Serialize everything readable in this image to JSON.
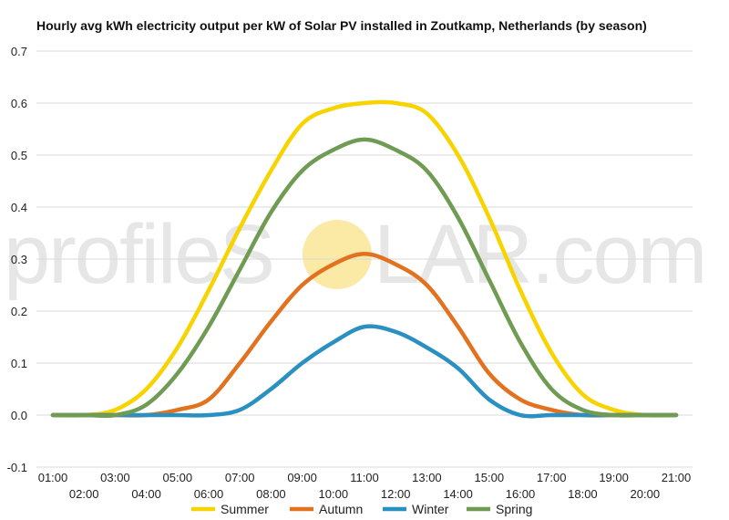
{
  "chart_data": {
    "type": "line",
    "title": "Hourly avg kWh electricity output per kW of Solar PV installed in Zoutkamp, Netherlands (by season)",
    "xlabel": "",
    "ylabel": "",
    "ylim": [
      -0.1,
      0.7
    ],
    "yticks": [
      "-0.1",
      "0.0",
      "0.1",
      "0.2",
      "0.3",
      "0.4",
      "0.5",
      "0.6",
      "0.7"
    ],
    "grid": true,
    "legend_position": "bottom",
    "x": [
      "01:00",
      "02:00",
      "03:00",
      "04:00",
      "05:00",
      "06:00",
      "07:00",
      "08:00",
      "09:00",
      "10:00",
      "11:00",
      "12:00",
      "13:00",
      "14:00",
      "15:00",
      "16:00",
      "17:00",
      "18:00",
      "19:00",
      "20:00",
      "21:00"
    ],
    "series": [
      {
        "name": "Summer",
        "color": "#F7D300",
        "values": [
          0.0,
          0.0,
          0.01,
          0.05,
          0.13,
          0.24,
          0.36,
          0.47,
          0.56,
          0.59,
          0.6,
          0.6,
          0.58,
          0.5,
          0.38,
          0.24,
          0.12,
          0.04,
          0.01,
          0.0,
          0.0
        ]
      },
      {
        "name": "Autumn",
        "color": "#E2721F",
        "values": [
          0.0,
          0.0,
          0.0,
          0.0,
          0.01,
          0.03,
          0.1,
          0.18,
          0.25,
          0.29,
          0.31,
          0.29,
          0.25,
          0.17,
          0.08,
          0.03,
          0.01,
          0.0,
          0.0,
          0.0,
          0.0
        ]
      },
      {
        "name": "Winter",
        "color": "#2A8FC1",
        "values": [
          0.0,
          0.0,
          0.0,
          0.0,
          0.0,
          0.0,
          0.01,
          0.05,
          0.1,
          0.14,
          0.17,
          0.16,
          0.13,
          0.09,
          0.03,
          0.0,
          0.0,
          0.0,
          0.0,
          0.0,
          0.0
        ]
      },
      {
        "name": "Spring",
        "color": "#6F9B53",
        "values": [
          0.0,
          0.0,
          0.0,
          0.02,
          0.08,
          0.17,
          0.28,
          0.39,
          0.47,
          0.51,
          0.53,
          0.51,
          0.47,
          0.38,
          0.26,
          0.14,
          0.05,
          0.01,
          0.0,
          0.0,
          0.0
        ]
      }
    ]
  },
  "watermark": {
    "text_left": "profileS",
    "text_right": "LAR.com",
    "sun_color": "#FBE9A6"
  }
}
